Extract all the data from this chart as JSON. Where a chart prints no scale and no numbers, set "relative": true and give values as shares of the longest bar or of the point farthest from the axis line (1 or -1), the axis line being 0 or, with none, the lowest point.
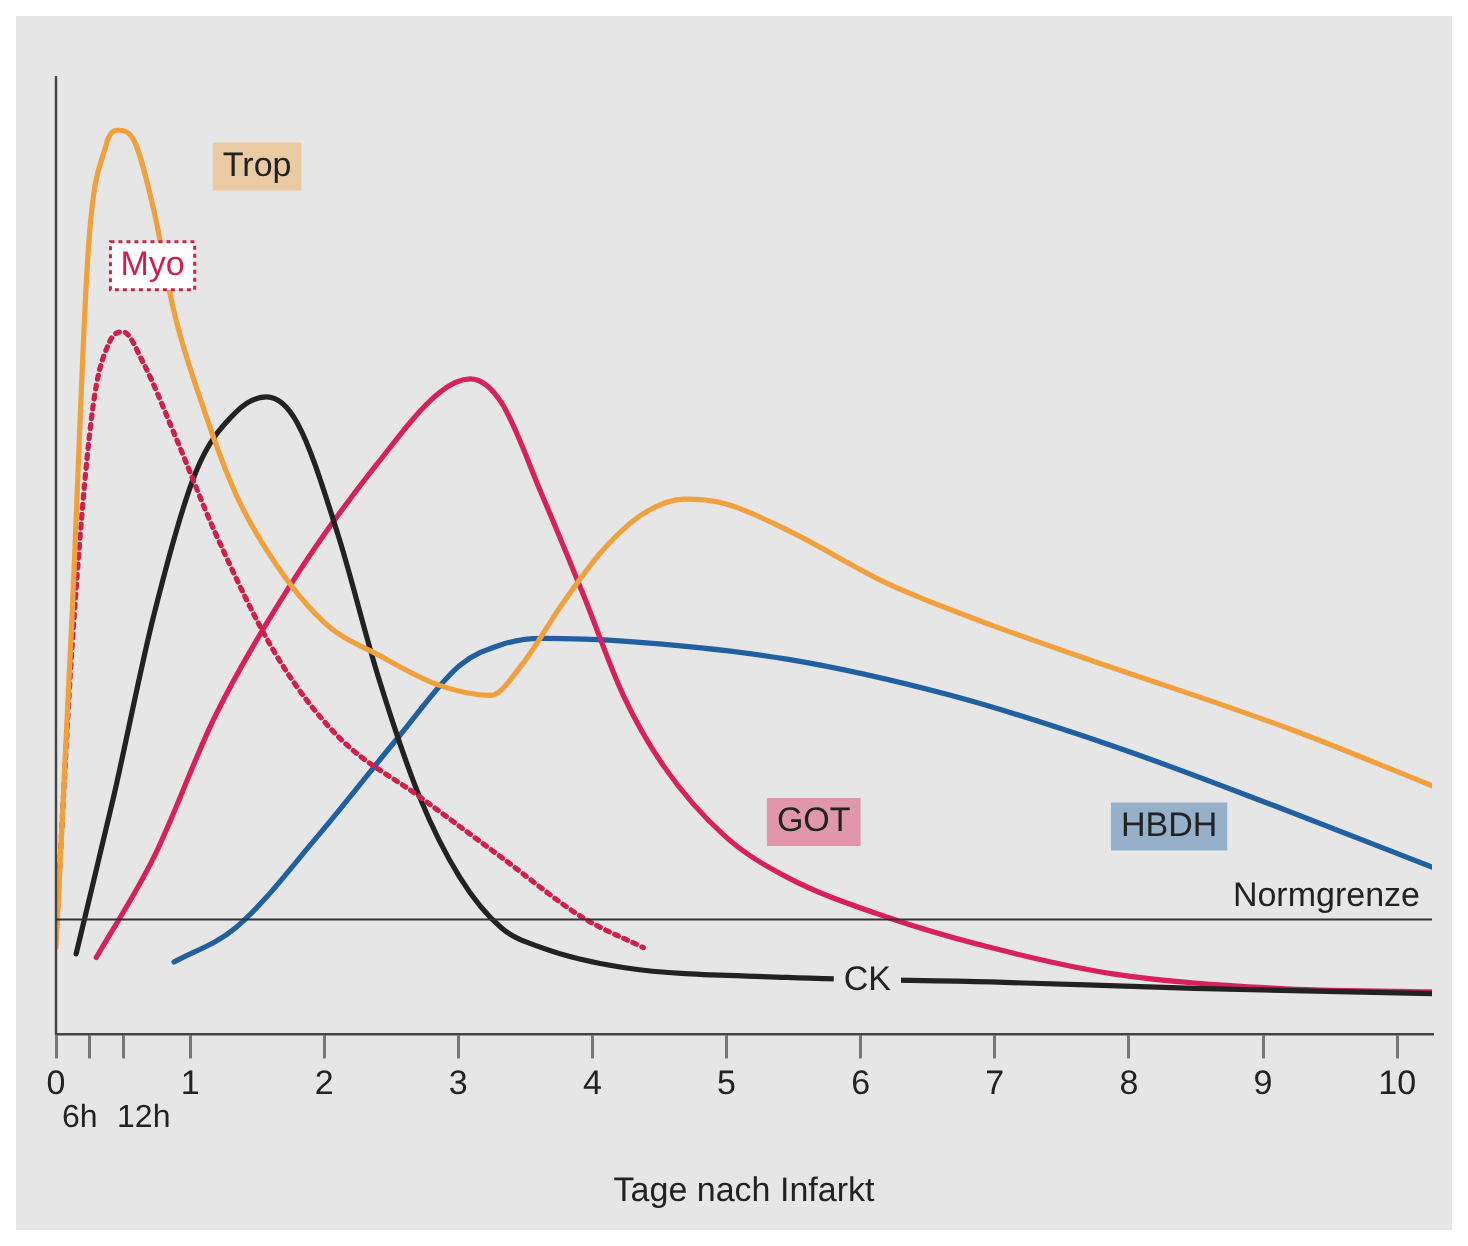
{
  "chart_data": {
    "type": "line",
    "relative": true,
    "xlabel": "Tage nach Infarkt",
    "xlim": [
      0,
      10.26
    ],
    "xticks": [
      0,
      {
        "value": 0.25,
        "label": null
      },
      {
        "value": 0.5,
        "label": null
      },
      1,
      2,
      3,
      4,
      5,
      6,
      7,
      8,
      9,
      10
    ],
    "annotations": [
      "6h",
      "12h"
    ],
    "legend": false,
    "grid": false,
    "marker": "none",
    "ref_lines": [
      {
        "axis": "y",
        "value": 0.127,
        "label": "Normgrenze",
        "color": "#333333"
      }
    ],
    "series": [
      {
        "name": "Trop",
        "color": "#f0a03c",
        "x": [
          0,
          0.12,
          0.24,
          0.37,
          0.46,
          0.58,
          0.73,
          0.88,
          1.11,
          1.34,
          1.64,
          2.02,
          2.4,
          2.86,
          3.24,
          3.47,
          3.77,
          4.08,
          4.38,
          4.69,
          4.99,
          5.45,
          6.21,
          6.97,
          7.73,
          8.49,
          9.25,
          10.26
        ],
        "values": [
          0.096,
          0.464,
          0.866,
          0.982,
          1,
          0.989,
          0.911,
          0.799,
          0.688,
          0.598,
          0.52,
          0.453,
          0.42,
          0.386,
          0.375,
          0.408,
          0.475,
          0.536,
          0.576,
          0.592,
          0.587,
          0.558,
          0.498,
          0.453,
          0.413,
          0.375,
          0.335,
          0.275
        ]
      },
      {
        "name": "Myo",
        "color": "#d0204a",
        "line_style": "dotted",
        "x": [
          0,
          0.12,
          0.27,
          0.4,
          0.5,
          0.65,
          0.88,
          1.19,
          1.64,
          2.1,
          2.71,
          3.32,
          3.93,
          4.38
        ],
        "values": [
          0.107,
          0.429,
          0.688,
          0.766,
          0.777,
          0.743,
          0.665,
          0.554,
          0.42,
          0.33,
          0.263,
          0.196,
          0.129,
          0.096
        ]
      },
      {
        "name": "CK",
        "color": "#222222",
        "x": [
          0.15,
          0.43,
          0.73,
          1.04,
          1.34,
          1.57,
          1.8,
          2.1,
          2.4,
          2.71,
          3.01,
          3.32,
          3.62,
          4.23,
          5.45,
          6.97,
          8.49,
          10.26
        ],
        "values": [
          0.089,
          0.263,
          0.464,
          0.621,
          0.688,
          0.705,
          0.676,
          0.554,
          0.397,
          0.263,
          0.174,
          0.118,
          0.096,
          0.074,
          0.063,
          0.058,
          0.051,
          0.045
        ]
      },
      {
        "name": "GOT",
        "color": "#d8215a",
        "x": [
          0.3,
          0.73,
          1.19,
          1.8,
          2.4,
          2.86,
          3.09,
          3.32,
          3.62,
          3.93,
          4.23,
          4.53,
          4.99,
          5.45,
          6.21,
          6.97,
          7.88,
          9.1,
          10.26
        ],
        "values": [
          0.085,
          0.196,
          0.353,
          0.509,
          0.632,
          0.71,
          0.725,
          0.699,
          0.598,
          0.487,
          0.375,
          0.297,
          0.219,
          0.174,
          0.129,
          0.096,
          0.067,
          0.051,
          0.047
        ]
      },
      {
        "name": "HBDH",
        "color": "#2060a0",
        "x": [
          0.88,
          1.34,
          1.95,
          2.56,
          3.01,
          3.32,
          3.62,
          4.23,
          5.45,
          6.67,
          7.88,
          9.1,
          10.26
        ],
        "values": [
          0.08,
          0.118,
          0.219,
          0.33,
          0.408,
          0.431,
          0.438,
          0.435,
          0.415,
          0.375,
          0.319,
          0.252,
          0.185
        ]
      }
    ]
  }
}
